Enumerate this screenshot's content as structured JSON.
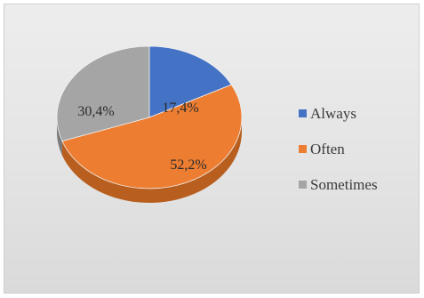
{
  "chart_data": {
    "type": "pie",
    "categories": [
      "Always",
      "Often",
      "Sometimes"
    ],
    "values": [
      17.4,
      52.2,
      30.4
    ],
    "labels": [
      "17,4%",
      "52,2%",
      "30,4%"
    ],
    "colors": [
      "#4472C4",
      "#ED7D31",
      "#A5A5A5"
    ],
    "darkColors": [
      "#2f5597",
      "#b85f1f",
      "#7a7a7a"
    ],
    "legend": {
      "placement": "right"
    },
    "style": "3d"
  }
}
